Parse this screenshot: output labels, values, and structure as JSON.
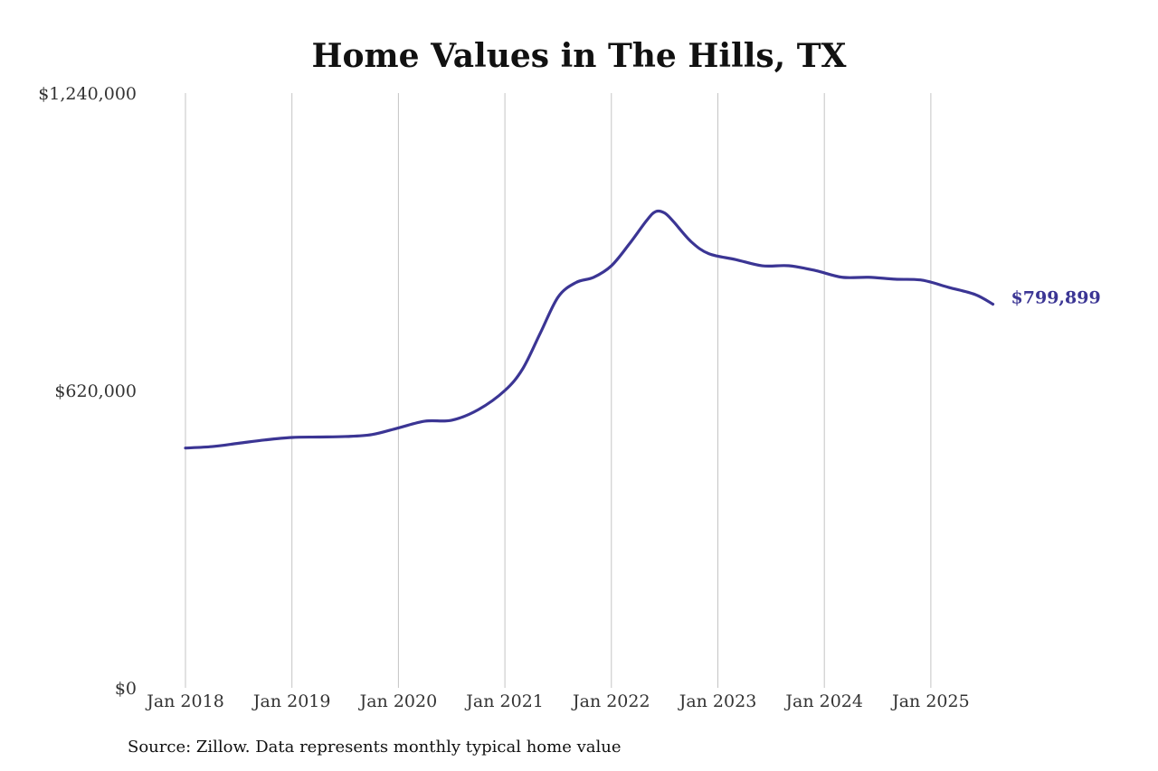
{
  "chart_data": {
    "type": "line",
    "title": "Home Values in The Hills, TX",
    "xlabel": "",
    "ylabel": "",
    "x_tick_labels": [
      "Jan 2018",
      "Jan 2019",
      "Jan 2020",
      "Jan 2021",
      "Jan 2022",
      "Jan 2023",
      "Jan 2024",
      "Jan 2025"
    ],
    "y_tick_labels": [
      "$0",
      "$620,000",
      "$1,240,000"
    ],
    "ylim": [
      0,
      1240000
    ],
    "xlim": [
      "2018-01",
      "2025-08"
    ],
    "grid": {
      "vertical": true,
      "horizontal": false
    },
    "legend": "none",
    "series": [
      {
        "color": "#3b3594",
        "points": [
          {
            "x": "2018-01",
            "y": 500000
          },
          {
            "x": "2018-04",
            "y": 503000
          },
          {
            "x": "2018-07",
            "y": 510000
          },
          {
            "x": "2018-10",
            "y": 517000
          },
          {
            "x": "2019-01",
            "y": 522000
          },
          {
            "x": "2019-04",
            "y": 523000
          },
          {
            "x": "2019-07",
            "y": 524000
          },
          {
            "x": "2019-10",
            "y": 528000
          },
          {
            "x": "2020-01",
            "y": 542000
          },
          {
            "x": "2020-04",
            "y": 556000
          },
          {
            "x": "2020-07",
            "y": 558000
          },
          {
            "x": "2020-10",
            "y": 580000
          },
          {
            "x": "2021-01",
            "y": 620000
          },
          {
            "x": "2021-03",
            "y": 665000
          },
          {
            "x": "2021-05",
            "y": 740000
          },
          {
            "x": "2021-07",
            "y": 815000
          },
          {
            "x": "2021-09",
            "y": 845000
          },
          {
            "x": "2021-11",
            "y": 856000
          },
          {
            "x": "2022-01",
            "y": 880000
          },
          {
            "x": "2022-03",
            "y": 925000
          },
          {
            "x": "2022-05",
            "y": 975000
          },
          {
            "x": "2022-06",
            "y": 993000
          },
          {
            "x": "2022-07",
            "y": 990000
          },
          {
            "x": "2022-08",
            "y": 972000
          },
          {
            "x": "2022-10",
            "y": 930000
          },
          {
            "x": "2022-12",
            "y": 905000
          },
          {
            "x": "2023-03",
            "y": 893000
          },
          {
            "x": "2023-06",
            "y": 880000
          },
          {
            "x": "2023-09",
            "y": 880000
          },
          {
            "x": "2023-12",
            "y": 870000
          },
          {
            "x": "2024-03",
            "y": 856000
          },
          {
            "x": "2024-06",
            "y": 856000
          },
          {
            "x": "2024-09",
            "y": 852000
          },
          {
            "x": "2024-12",
            "y": 850000
          },
          {
            "x": "2025-03",
            "y": 835000
          },
          {
            "x": "2025-06",
            "y": 820000
          },
          {
            "x": "2025-08",
            "y": 799899
          }
        ]
      }
    ],
    "end_label": "$799,899"
  },
  "footer": {
    "source": "Source: Zillow. Data represents monthly typical home value"
  }
}
